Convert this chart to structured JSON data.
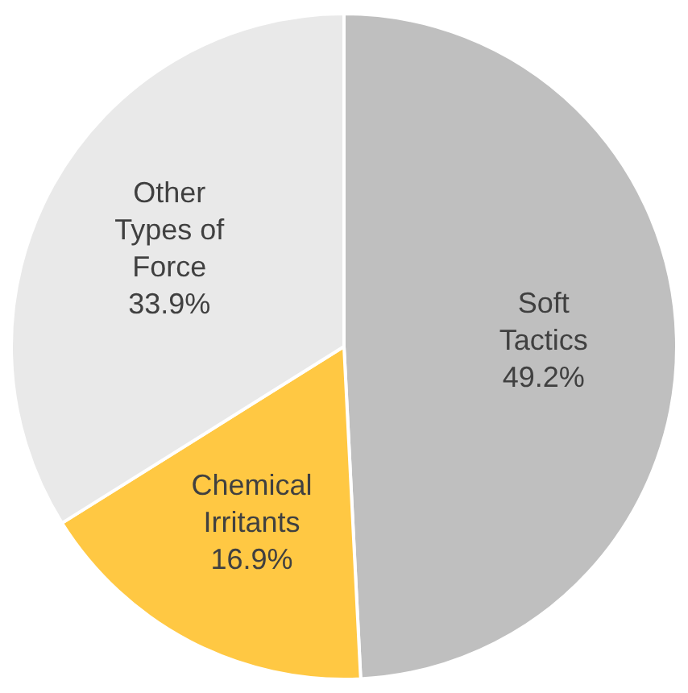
{
  "chart_data": {
    "type": "pie",
    "categories": [
      "Soft Tactics",
      "Chemical Irritants",
      "Other Types of Force"
    ],
    "values": [
      49.2,
      16.9,
      33.9
    ],
    "colors": [
      "#bfbfbf",
      "#ffc843",
      "#e9e9e9"
    ],
    "value_labels": [
      "49.2%",
      "16.9%",
      "33.9%"
    ],
    "legend": false
  }
}
